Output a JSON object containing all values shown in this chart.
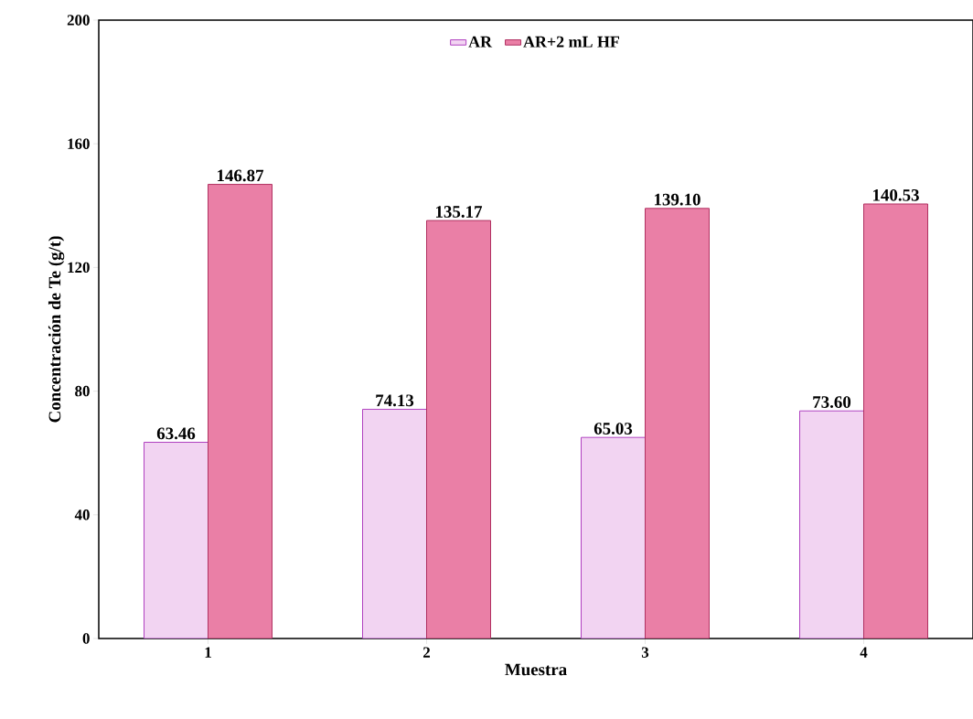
{
  "chart_data": {
    "type": "bar",
    "xlabel": "Muestra",
    "ylabel": "Concentración de Te (g/t)",
    "categories": [
      "1",
      "2",
      "3",
      "4"
    ],
    "series": [
      {
        "name": "AR",
        "color": "#f2d4f2",
        "values": [
          63.46,
          74.13,
          65.03,
          73.6
        ],
        "value_labels": [
          "63.46",
          "74.13",
          "65.03",
          "73.60"
        ]
      },
      {
        "name": "AR+2 mL HF",
        "color": "#ea7fa6",
        "values": [
          146.87,
          135.17,
          139.1,
          140.53
        ],
        "value_labels": [
          "146.87",
          "135.17",
          "139.10",
          "140.53"
        ]
      }
    ],
    "ylim": [
      0,
      200
    ],
    "yticks": [
      0,
      40,
      80,
      120,
      160,
      200
    ],
    "legend": "top",
    "grid": false
  }
}
